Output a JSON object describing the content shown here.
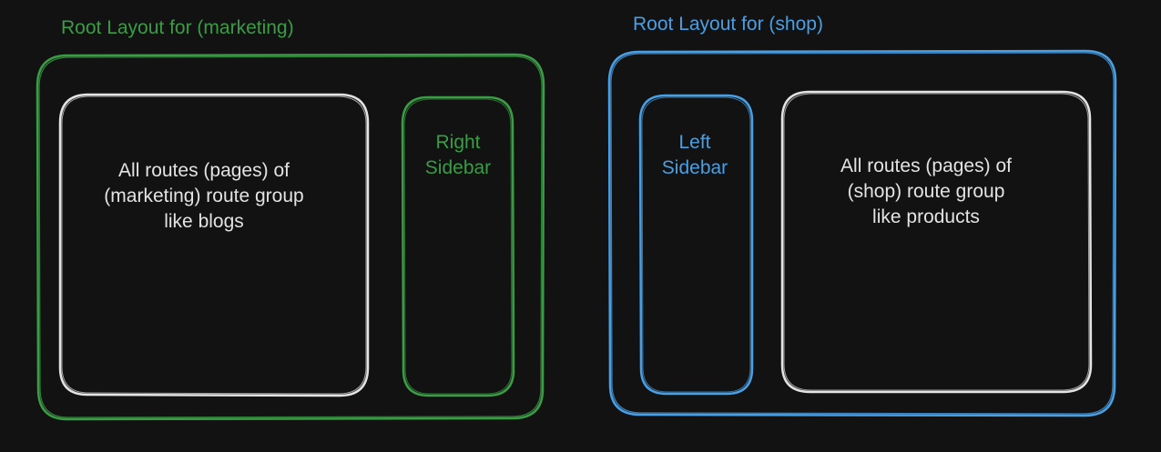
{
  "colors": {
    "background": "#121212",
    "marketing": "#3a9c45",
    "shop": "#4a9fe3",
    "content": "#e3e3e3"
  },
  "marketing": {
    "title": "Root Layout for (marketing)",
    "content_text": "All routes (pages) of\n(marketing) route group\nlike blogs",
    "sidebar_text": "Right\nSidebar"
  },
  "shop": {
    "title": "Root Layout for (shop)",
    "sidebar_text": "Left\nSidebar",
    "content_text": "All routes (pages) of\n(shop) route group\nlike products"
  }
}
